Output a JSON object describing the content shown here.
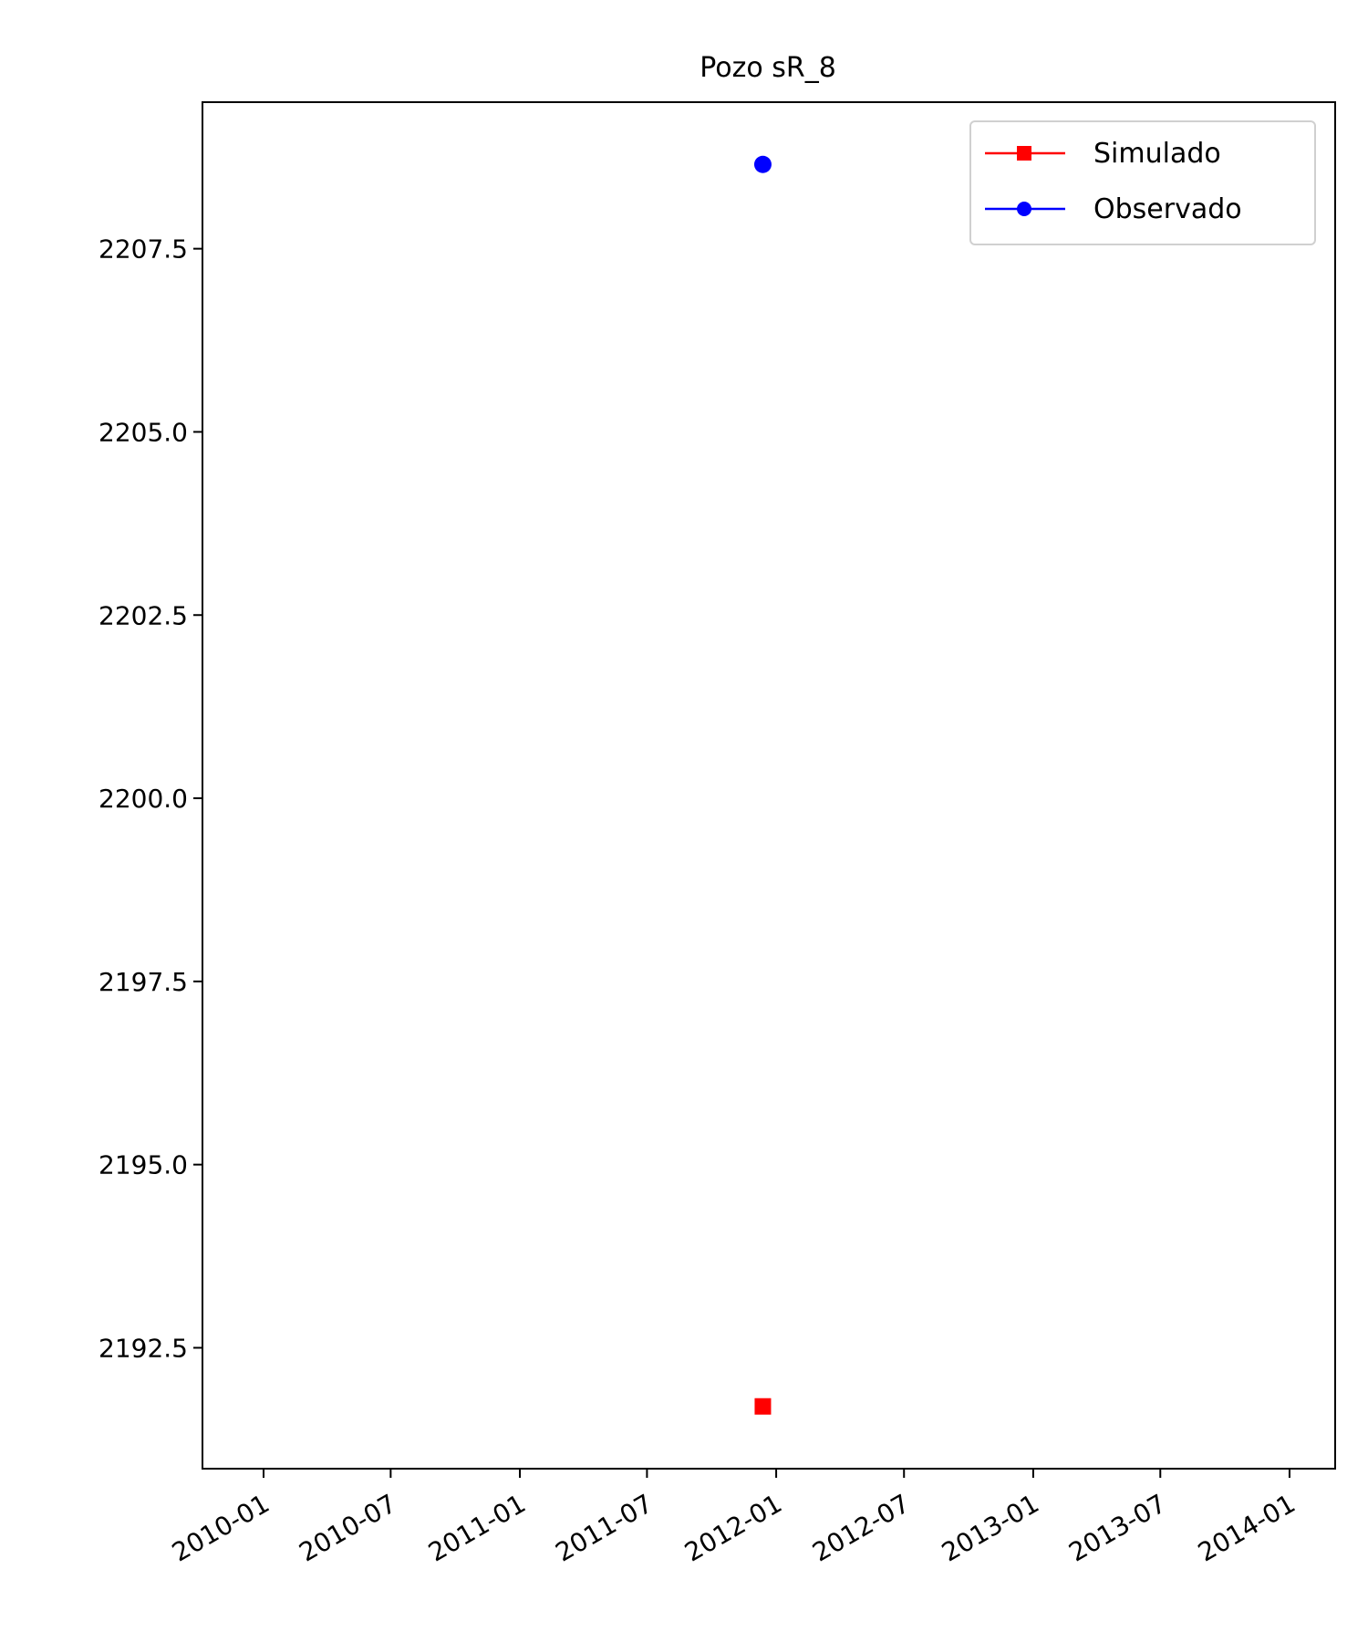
{
  "chart_data": {
    "type": "scatter",
    "title": "Pozo sR_8",
    "xlabel": "",
    "ylabel": "",
    "x_axis": {
      "type": "date",
      "range": [
        "2009-10-06",
        "2014-03-07"
      ],
      "ticks": [
        "2010-01",
        "2010-07",
        "2011-01",
        "2011-07",
        "2012-01",
        "2012-07",
        "2013-01",
        "2013-07",
        "2014-01"
      ]
    },
    "y_axis": {
      "range": [
        2190.85,
        2209.5
      ],
      "ticks": [
        "2192.5",
        "2195.0",
        "2197.5",
        "2200.0",
        "2202.5",
        "2205.0",
        "2207.5"
      ]
    },
    "grid": false,
    "legend_position": "top-right",
    "series": [
      {
        "name": "Simulado",
        "color": "#ff0000",
        "marker": "square",
        "points": [
          {
            "x": "2011-12-13",
            "y": 2191.7
          }
        ]
      },
      {
        "name": "Observado",
        "color": "#0000ff",
        "marker": "circle",
        "points": [
          {
            "x": "2011-12-13",
            "y": 2208.65
          }
        ]
      }
    ]
  }
}
